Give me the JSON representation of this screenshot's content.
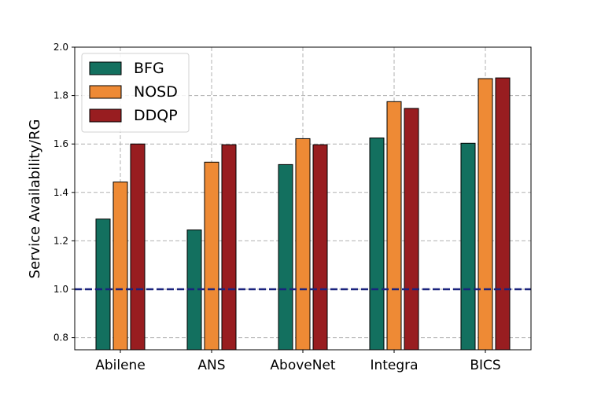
{
  "chart_data": {
    "type": "bar",
    "title": "",
    "xlabel": "",
    "ylabel": "Service Availability/RG",
    "categories": [
      "Abilene",
      "ANS",
      "AboveNet",
      "Integra",
      "BICS"
    ],
    "series": [
      {
        "name": "BFG",
        "color": "#13705f",
        "values": [
          1.29,
          1.245,
          1.515,
          1.625,
          1.603
        ]
      },
      {
        "name": "NOSD",
        "color": "#ee8a35",
        "values": [
          1.443,
          1.525,
          1.622,
          1.775,
          1.87
        ]
      },
      {
        "name": "DDQP",
        "color": "#981d20",
        "values": [
          1.6,
          1.597,
          1.597,
          1.747,
          1.873
        ]
      }
    ],
    "ylim": [
      0.75,
      2.0
    ],
    "yticks": [
      0.8,
      1.0,
      1.2,
      1.4,
      1.6,
      1.8,
      2.0
    ],
    "ytick_labels": [
      "0.8",
      "1.0",
      "1.2",
      "1.4",
      "1.6",
      "1.8",
      "2.0"
    ],
    "reference_line": {
      "value": 1.0,
      "color": "#1a237e",
      "style": "dashed"
    },
    "grid": true,
    "legend_position": "top-left"
  }
}
